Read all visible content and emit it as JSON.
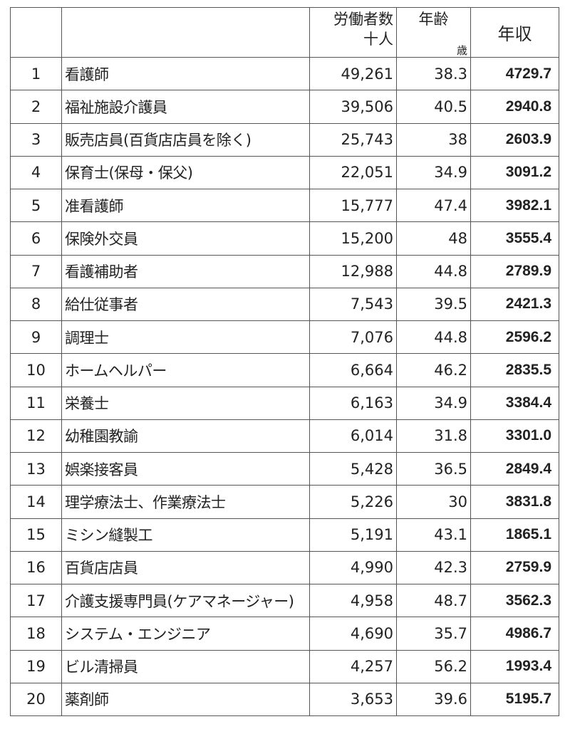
{
  "table": {
    "headers": {
      "rank": "",
      "occupation": "",
      "workers_line1": "労働者数",
      "workers_line2": "十人",
      "age_line1": "年齢",
      "age_line2": "歳",
      "income": "年収"
    },
    "rows": [
      {
        "rank": "1",
        "name": "看護師",
        "workers": "49,261",
        "age": "38.3",
        "income": "4729.7"
      },
      {
        "rank": "2",
        "name": "福祉施設介護員",
        "workers": "39,506",
        "age": "40.5",
        "income": "2940.8"
      },
      {
        "rank": "3",
        "name": "販売店員(百貨店店員を除く)",
        "workers": "25,743",
        "age": "38",
        "income": "2603.9"
      },
      {
        "rank": "4",
        "name": "保育士(保母・保父)",
        "workers": "22,051",
        "age": "34.9",
        "income": "3091.2"
      },
      {
        "rank": "5",
        "name": "准看護師",
        "workers": "15,777",
        "age": "47.4",
        "income": "3982.1"
      },
      {
        "rank": "6",
        "name": "保険外交員",
        "workers": "15,200",
        "age": "48",
        "income": "3555.4"
      },
      {
        "rank": "7",
        "name": "看護補助者",
        "workers": "12,988",
        "age": "44.8",
        "income": "2789.9"
      },
      {
        "rank": "8",
        "name": "給仕従事者",
        "workers": "7,543",
        "age": "39.5",
        "income": "2421.3"
      },
      {
        "rank": "9",
        "name": "調理士",
        "workers": "7,076",
        "age": "44.8",
        "income": "2596.2"
      },
      {
        "rank": "10",
        "name": "ホームヘルパー",
        "workers": "6,664",
        "age": "46.2",
        "income": "2835.5"
      },
      {
        "rank": "11",
        "name": "栄養士",
        "workers": "6,163",
        "age": "34.9",
        "income": "3384.4"
      },
      {
        "rank": "12",
        "name": "幼稚園教諭",
        "workers": "6,014",
        "age": "31.8",
        "income": "3301.0"
      },
      {
        "rank": "13",
        "name": "娯楽接客員",
        "workers": "5,428",
        "age": "36.5",
        "income": "2849.4"
      },
      {
        "rank": "14",
        "name": "理学療法士、作業療法士",
        "workers": "5,226",
        "age": "30",
        "income": "3831.8"
      },
      {
        "rank": "15",
        "name": "ミシン縫製工",
        "workers": "5,191",
        "age": "43.1",
        "income": "1865.1"
      },
      {
        "rank": "16",
        "name": "百貨店店員",
        "workers": "4,990",
        "age": "42.3",
        "income": "2759.9"
      },
      {
        "rank": "17",
        "name": "介護支援専門員(ケアマネージャー)",
        "workers": "4,958",
        "age": "48.7",
        "income": "3562.3"
      },
      {
        "rank": "18",
        "name": "システム・エンジニア",
        "workers": "4,690",
        "age": "35.7",
        "income": "4986.7"
      },
      {
        "rank": "19",
        "name": "ビル清掃員",
        "workers": "4,257",
        "age": "56.2",
        "income": "1993.4"
      },
      {
        "rank": "20",
        "name": "薬剤師",
        "workers": "3,653",
        "age": "39.6",
        "income": "5195.7"
      }
    ]
  }
}
